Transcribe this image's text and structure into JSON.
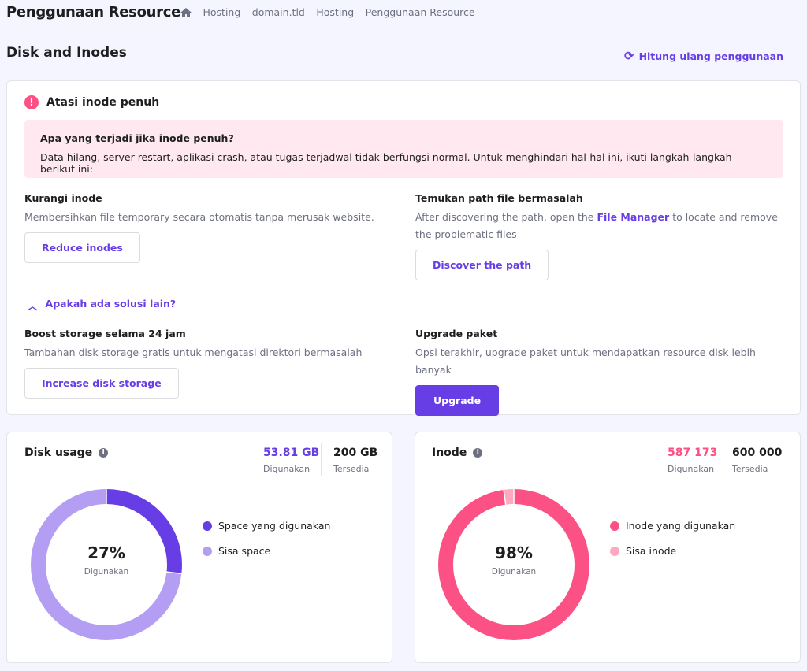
{
  "header": {
    "title": "Penggunaan Resource",
    "breadcrumb": [
      "Hosting",
      "domain.tld",
      "Hosting",
      "Penggunaan Resource"
    ]
  },
  "section": {
    "title": "Disk and Inodes",
    "recalc_label": "Hitung ulang penggunaan"
  },
  "alert": {
    "title": "Atasi inode penuh",
    "box_title": "Apa yang terjadi jika inode penuh?",
    "box_text": "Data hilang, server restart, aplikasi crash, atau tugas terjadwal tidak berfungsi normal. Untuk menghindari hal-hal ini, ikuti langkah-langkah berikut ini:",
    "reduce": {
      "title": "Kurangi inode",
      "desc": "Membersihkan file temporary secara otomatis tanpa merusak website.",
      "button": "Reduce inodes"
    },
    "discover": {
      "title": "Temukan path file bermasalah",
      "desc_before": "After discovering the path, open the ",
      "link": "File Manager",
      "desc_after": " to locate and remove the problematic files",
      "button": "Discover the path"
    },
    "toggle": "Apakah ada solusi lain?",
    "boost": {
      "title": "Boost storage selama 24 jam",
      "desc": "Tambahan disk storage gratis untuk mengatasi direktori bermasalah",
      "button": "Increase disk storage"
    },
    "upgrade": {
      "title": "Upgrade paket",
      "desc": "Opsi terakhir, upgrade paket untuk mendapatkan resource disk lebih banyak",
      "button": "Upgrade"
    }
  },
  "disk": {
    "title": "Disk usage",
    "used": "53.81 GB",
    "used_label": "Digunakan",
    "total": "200 GB",
    "total_label": "Tersedia",
    "percent": "27%",
    "percent_label": "Digunakan",
    "legend_used": "Space yang digunakan",
    "legend_free": "Sisa space",
    "used_fraction": 0.269,
    "color_used": "#673de6",
    "color_free": "#b39ef3"
  },
  "inode": {
    "title": "Inode",
    "used": "587 173",
    "used_label": "Digunakan",
    "total": "600 000",
    "total_label": "Tersedia",
    "percent": "98%",
    "percent_label": "Digunakan",
    "legend_used": "Inode yang digunakan",
    "legend_free": "Sisa inode",
    "used_fraction": 0.9786,
    "color_used": "#fc5185",
    "color_free": "#fea8c2"
  }
}
